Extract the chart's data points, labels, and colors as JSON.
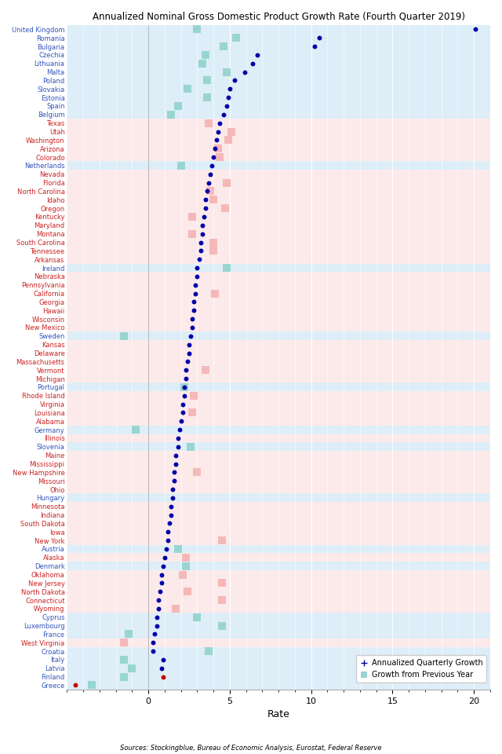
{
  "title": "Annualized Nominal Gross Domestic Product Growth Rate (Fourth Quarter 2019)",
  "xlabel": "Rate",
  "source": "Sources: Stockingblue, Bureau of Economic Analysis, Eurostat, Federal Reserve",
  "xlim": [
    -5,
    21
  ],
  "xticks": [
    0,
    5,
    10,
    15,
    20
  ],
  "xtick_labels": [
    "0",
    "5",
    "10",
    "15",
    "20"
  ],
  "legend_dot_label": "Annualized Quarterly Growth",
  "legend_sq_label": "Growth from Previous Year",
  "bg_blue": "#ddeef8",
  "bg_red": "#fceaea",
  "sq_color_eu": "#99d5d0",
  "sq_color_us_red": "#f5b8b8",
  "sq_color_us_pink": "#f5c8c8",
  "dot_color_dark": "#0000aa",
  "dot_color_red": "#cc0000",
  "label_color_eu": "#3355bb",
  "label_color_us": "#cc2222",
  "entries": [
    {
      "label": "United Kingdom",
      "region": "eu",
      "dot": 20.1,
      "dot_red": false,
      "sq": 3.0
    },
    {
      "label": "Romania",
      "region": "eu",
      "dot": 10.5,
      "dot_red": false,
      "sq": 5.4
    },
    {
      "label": "Bulgaria",
      "region": "eu",
      "dot": 10.2,
      "dot_red": false,
      "sq": 4.6
    },
    {
      "label": "Czechia",
      "region": "eu",
      "dot": 6.7,
      "dot_red": false,
      "sq": 3.5
    },
    {
      "label": "Lithuania",
      "region": "eu",
      "dot": 6.4,
      "dot_red": false,
      "sq": 3.3
    },
    {
      "label": "Malta",
      "region": "eu",
      "dot": 5.9,
      "dot_red": false,
      "sq": 4.8
    },
    {
      "label": "Poland",
      "region": "eu",
      "dot": 5.3,
      "dot_red": false,
      "sq": 3.6
    },
    {
      "label": "Slovakia",
      "region": "eu",
      "dot": 5.0,
      "dot_red": false,
      "sq": 2.4
    },
    {
      "label": "Estonia",
      "region": "eu",
      "dot": 4.9,
      "dot_red": false,
      "sq": 3.6
    },
    {
      "label": "Spain",
      "region": "eu",
      "dot": 4.8,
      "dot_red": false,
      "sq": 1.8
    },
    {
      "label": "Belgium",
      "region": "eu",
      "dot": 4.6,
      "dot_red": false,
      "sq": 1.4
    },
    {
      "label": "Texas",
      "region": "us",
      "dot": 4.4,
      "dot_red": false,
      "sq": 3.7
    },
    {
      "label": "Utah",
      "region": "us",
      "dot": 4.3,
      "dot_red": false,
      "sq": 5.1
    },
    {
      "label": "Washington",
      "region": "us",
      "dot": 4.2,
      "dot_red": false,
      "sq": 4.9
    },
    {
      "label": "Arizona",
      "region": "us",
      "dot": 4.1,
      "dot_red": false,
      "sq": 4.3
    },
    {
      "label": "Colorado",
      "region": "us",
      "dot": 4.0,
      "dot_red": false,
      "sq": 4.4
    },
    {
      "label": "Netherlands",
      "region": "eu",
      "dot": 3.9,
      "dot_red": false,
      "sq": 2.0
    },
    {
      "label": "Nevada",
      "region": "us",
      "dot": 3.8,
      "dot_red": false,
      "sq": null
    },
    {
      "label": "Florida",
      "region": "us",
      "dot": 3.7,
      "dot_red": false,
      "sq": 4.8
    },
    {
      "label": "North Carolina",
      "region": "us",
      "dot": 3.6,
      "dot_red": false,
      "sq": 3.8
    },
    {
      "label": "Idaho",
      "region": "us",
      "dot": 3.5,
      "dot_red": false,
      "sq": 4.0
    },
    {
      "label": "Oregon",
      "region": "us",
      "dot": 3.5,
      "dot_red": false,
      "sq": 4.7
    },
    {
      "label": "Kentucky",
      "region": "us",
      "dot": 3.4,
      "dot_red": false,
      "sq": 2.7
    },
    {
      "label": "Maryland",
      "region": "us",
      "dot": 3.3,
      "dot_red": false,
      "sq": null
    },
    {
      "label": "Montana",
      "region": "us",
      "dot": 3.3,
      "dot_red": false,
      "sq": 2.7
    },
    {
      "label": "South Carolina",
      "region": "us",
      "dot": 3.2,
      "dot_red": false,
      "sq": 4.0
    },
    {
      "label": "Tennessee",
      "region": "us",
      "dot": 3.2,
      "dot_red": false,
      "sq": 4.0
    },
    {
      "label": "Arkansas",
      "region": "us",
      "dot": 3.1,
      "dot_red": false,
      "sq": null
    },
    {
      "label": "Ireland",
      "region": "eu",
      "dot": 3.0,
      "dot_red": false,
      "sq": 4.8
    },
    {
      "label": "Nebraska",
      "region": "us",
      "dot": 3.0,
      "dot_red": false,
      "sq": null
    },
    {
      "label": "Pennsylvania",
      "region": "us",
      "dot": 2.9,
      "dot_red": false,
      "sq": null
    },
    {
      "label": "California",
      "region": "us",
      "dot": 2.9,
      "dot_red": false,
      "sq": 4.1
    },
    {
      "label": "Georgia",
      "region": "us",
      "dot": 2.8,
      "dot_red": false,
      "sq": null
    },
    {
      "label": "Hawaii",
      "region": "us",
      "dot": 2.8,
      "dot_red": false,
      "sq": null
    },
    {
      "label": "Wisconsin",
      "region": "us",
      "dot": 2.7,
      "dot_red": false,
      "sq": null
    },
    {
      "label": "New Mexico",
      "region": "us",
      "dot": 2.7,
      "dot_red": false,
      "sq": null
    },
    {
      "label": "Sweden",
      "region": "eu",
      "dot": 2.6,
      "dot_red": false,
      "sq": -1.5
    },
    {
      "label": "Kansas",
      "region": "us",
      "dot": 2.5,
      "dot_red": false,
      "sq": null
    },
    {
      "label": "Delaware",
      "region": "us",
      "dot": 2.5,
      "dot_red": false,
      "sq": null
    },
    {
      "label": "Massachusetts",
      "region": "us",
      "dot": 2.4,
      "dot_red": false,
      "sq": null
    },
    {
      "label": "Vermont",
      "region": "us",
      "dot": 2.3,
      "dot_red": false,
      "sq": 3.5
    },
    {
      "label": "Michigan",
      "region": "us",
      "dot": 2.3,
      "dot_red": false,
      "sq": null
    },
    {
      "label": "Portugal",
      "region": "eu",
      "dot": 2.2,
      "dot_red": false,
      "sq": 2.2
    },
    {
      "label": "Rhode Island",
      "region": "us",
      "dot": 2.2,
      "dot_red": false,
      "sq": 2.8
    },
    {
      "label": "Virginia",
      "region": "us",
      "dot": 2.1,
      "dot_red": false,
      "sq": null
    },
    {
      "label": "Louisiana",
      "region": "us",
      "dot": 2.1,
      "dot_red": false,
      "sq": 2.7
    },
    {
      "label": "Alabama",
      "region": "us",
      "dot": 2.0,
      "dot_red": false,
      "sq": null
    },
    {
      "label": "Germany",
      "region": "eu",
      "dot": 1.9,
      "dot_red": false,
      "sq": -0.8
    },
    {
      "label": "Illinois",
      "region": "us",
      "dot": 1.8,
      "dot_red": false,
      "sq": null
    },
    {
      "label": "Slovenia",
      "region": "eu",
      "dot": 1.8,
      "dot_red": false,
      "sq": 2.6
    },
    {
      "label": "Maine",
      "region": "us",
      "dot": 1.7,
      "dot_red": false,
      "sq": null
    },
    {
      "label": "Mississippi",
      "region": "us",
      "dot": 1.7,
      "dot_red": false,
      "sq": null
    },
    {
      "label": "New Hampshire",
      "region": "us",
      "dot": 1.6,
      "dot_red": false,
      "sq": 3.0
    },
    {
      "label": "Missouri",
      "region": "us",
      "dot": 1.6,
      "dot_red": false,
      "sq": null
    },
    {
      "label": "Ohio",
      "region": "us",
      "dot": 1.5,
      "dot_red": false,
      "sq": null
    },
    {
      "label": "Hungary",
      "region": "eu",
      "dot": 1.5,
      "dot_red": false,
      "sq": null
    },
    {
      "label": "Minnesota",
      "region": "us",
      "dot": 1.4,
      "dot_red": false,
      "sq": null
    },
    {
      "label": "Indiana",
      "region": "us",
      "dot": 1.4,
      "dot_red": false,
      "sq": null
    },
    {
      "label": "South Dakota",
      "region": "us",
      "dot": 1.3,
      "dot_red": false,
      "sq": null
    },
    {
      "label": "Iowa",
      "region": "us",
      "dot": 1.2,
      "dot_red": false,
      "sq": null
    },
    {
      "label": "New York",
      "region": "us",
      "dot": 1.2,
      "dot_red": false,
      "sq": 4.5
    },
    {
      "label": "Austria",
      "region": "eu",
      "dot": 1.1,
      "dot_red": false,
      "sq": 1.8
    },
    {
      "label": "Alaska",
      "region": "us",
      "dot": 1.0,
      "dot_red": false,
      "sq": 2.3
    },
    {
      "label": "Denmark",
      "region": "eu",
      "dot": 0.9,
      "dot_red": false,
      "sq": 2.3
    },
    {
      "label": "Oklahoma",
      "region": "us",
      "dot": 0.8,
      "dot_red": false,
      "sq": 2.1
    },
    {
      "label": "New Jersey",
      "region": "us",
      "dot": 0.8,
      "dot_red": false,
      "sq": 4.5
    },
    {
      "label": "North Dakota",
      "region": "us",
      "dot": 0.7,
      "dot_red": false,
      "sq": 2.4
    },
    {
      "label": "Connecticut",
      "region": "us",
      "dot": 0.6,
      "dot_red": false,
      "sq": 4.5
    },
    {
      "label": "Wyoming",
      "region": "us",
      "dot": 0.6,
      "dot_red": false,
      "sq": 1.7
    },
    {
      "label": "Cyprus",
      "region": "eu",
      "dot": 0.5,
      "dot_red": false,
      "sq": 3.0
    },
    {
      "label": "Luxembourg",
      "region": "eu",
      "dot": 0.5,
      "dot_red": false,
      "sq": 4.5
    },
    {
      "label": "France",
      "region": "eu",
      "dot": 0.4,
      "dot_red": false,
      "sq": -1.2
    },
    {
      "label": "West Virginia",
      "region": "us",
      "dot": 0.3,
      "dot_red": false,
      "sq": -1.5
    },
    {
      "label": "Croatia",
      "region": "eu",
      "dot": 0.3,
      "dot_red": false,
      "sq": 3.7
    },
    {
      "label": "Italy",
      "region": "eu",
      "dot": 0.9,
      "dot_red": false,
      "sq": -1.5
    },
    {
      "label": "Latvia",
      "region": "eu",
      "dot": 0.8,
      "dot_red": false,
      "sq": -1.0
    },
    {
      "label": "Finland",
      "region": "eu",
      "dot": 0.9,
      "dot_red": true,
      "sq": -1.5
    },
    {
      "label": "Greece",
      "region": "eu",
      "dot": -4.5,
      "dot_red": true,
      "sq": -3.5
    }
  ]
}
